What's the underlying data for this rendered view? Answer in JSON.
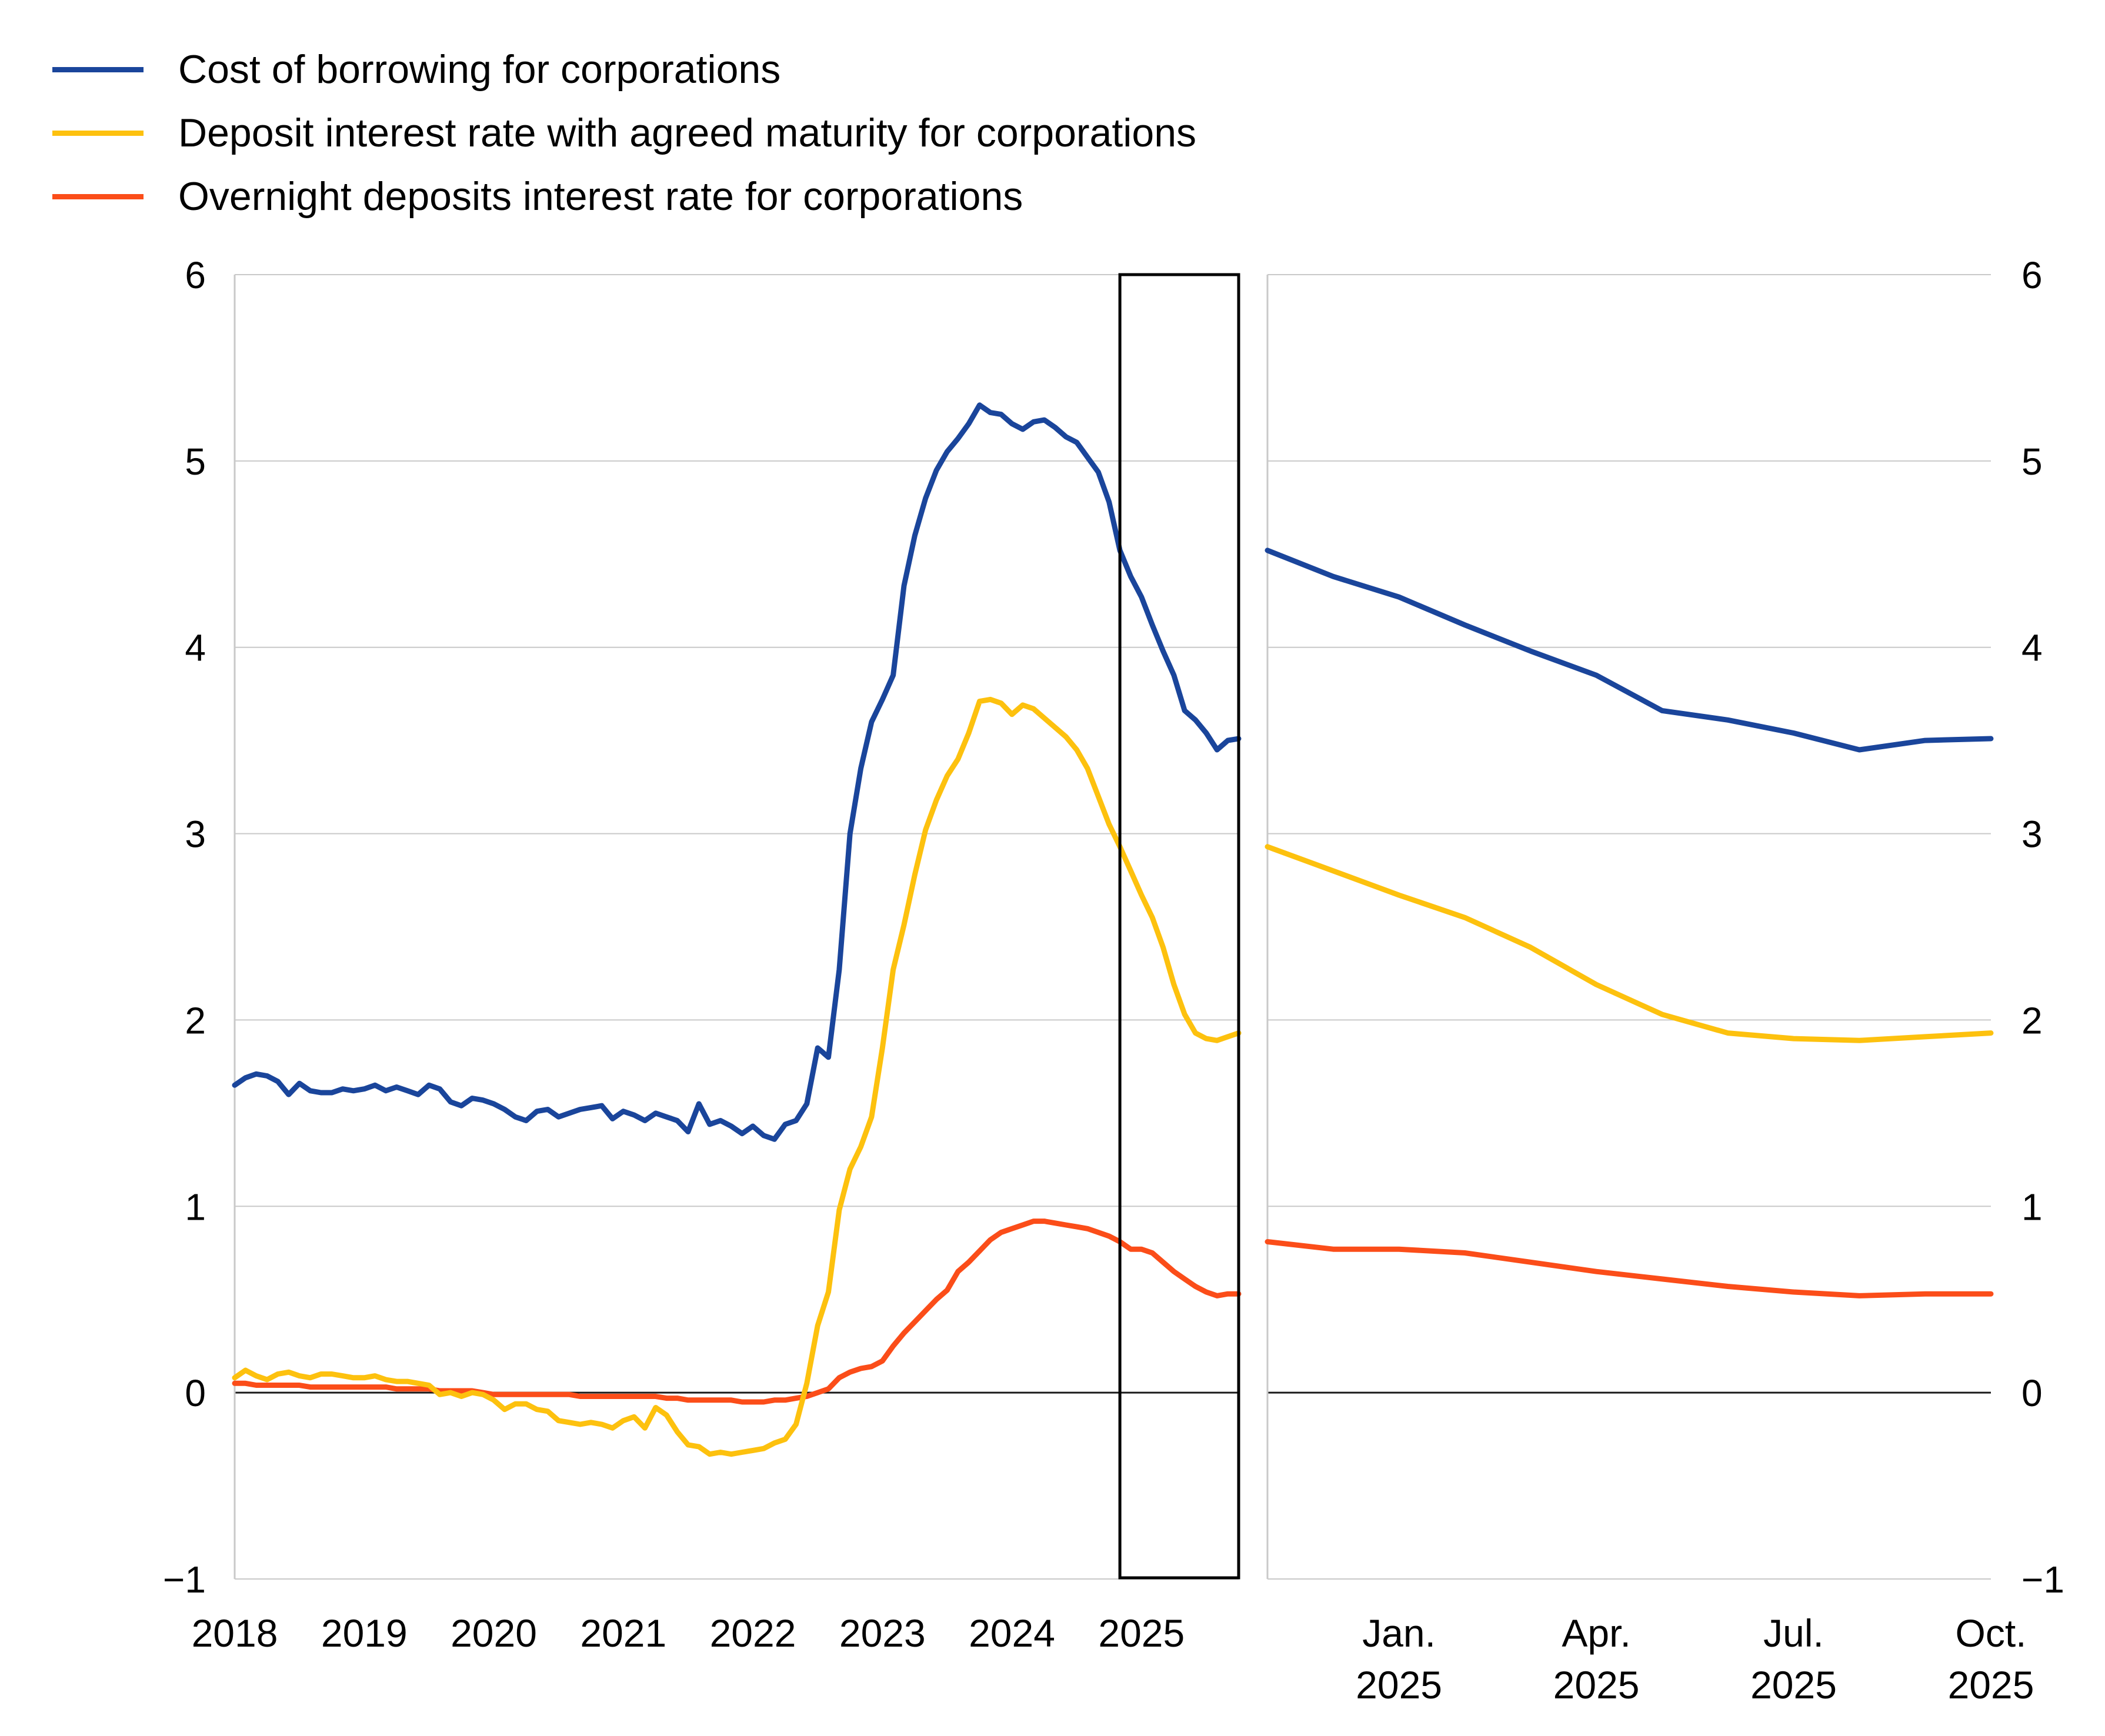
{
  "legend": {
    "items": [
      {
        "label": "Cost of borrowing for corporations",
        "color": "#1A459B",
        "icon": "line-swatch"
      },
      {
        "label": "Deposit interest rate with agreed maturity for corporations",
        "color": "#FDC10E",
        "icon": "line-swatch"
      },
      {
        "label": "Overnight deposits interest rate for corporations",
        "color": "#FB4D19",
        "icon": "line-swatch"
      }
    ]
  },
  "axes": {
    "left_tick_labels": [
      "6",
      "5",
      "4",
      "3",
      "2",
      "1",
      "0",
      "−1"
    ],
    "right_tick_labels": [
      "6",
      "5",
      "4",
      "3",
      "2",
      "1",
      "0",
      "−1"
    ],
    "tick_values": [
      6,
      5,
      4,
      3,
      2,
      1,
      0,
      -1
    ],
    "grid_color": "#c9c9c9",
    "zero_line_color": "#1a1a1a",
    "text_color": "#000000"
  },
  "chart_data": [
    {
      "type": "line",
      "panel": "left",
      "title": "",
      "xlabel": "",
      "ylabel": "",
      "frequency": "monthly",
      "x_start": "2018-01",
      "x_end": "2025-10",
      "ylim": [
        -1,
        6
      ],
      "y_ticks": [
        6,
        5,
        4,
        3,
        2,
        1,
        0,
        -1
      ],
      "grid": true,
      "legend_position": "top-left",
      "x_tick_labels": [
        "2018",
        "2019",
        "2020",
        "2021",
        "2022",
        "2023",
        "2024",
        "2025"
      ],
      "x_tick_month_indices": [
        0,
        12,
        24,
        36,
        48,
        60,
        72,
        84
      ],
      "highlight_box": {
        "start": "2024-11",
        "end": "2025-10",
        "start_index": 82,
        "end_index": 93,
        "color": "#000000"
      },
      "series": [
        {
          "name": "Cost of borrowing for corporations",
          "color": "#1A459B",
          "values": [
            1.65,
            1.69,
            1.71,
            1.7,
            1.67,
            1.6,
            1.66,
            1.62,
            1.61,
            1.61,
            1.63,
            1.62,
            1.63,
            1.65,
            1.62,
            1.64,
            1.62,
            1.6,
            1.65,
            1.63,
            1.56,
            1.54,
            1.58,
            1.57,
            1.55,
            1.52,
            1.48,
            1.46,
            1.51,
            1.52,
            1.48,
            1.5,
            1.52,
            1.53,
            1.54,
            1.47,
            1.51,
            1.49,
            1.46,
            1.5,
            1.48,
            1.46,
            1.4,
            1.55,
            1.44,
            1.46,
            1.43,
            1.39,
            1.43,
            1.38,
            1.36,
            1.44,
            1.46,
            1.55,
            1.85,
            1.8,
            2.27,
            3.0,
            3.35,
            3.6,
            3.72,
            3.85,
            4.33,
            4.6,
            4.8,
            4.95,
            5.05,
            5.12,
            5.2,
            5.3,
            5.26,
            5.25,
            5.2,
            5.17,
            5.21,
            5.22,
            5.18,
            5.13,
            5.1,
            5.02,
            4.94,
            4.78,
            4.52,
            4.38,
            4.27,
            4.12,
            3.98,
            3.85,
            3.66,
            3.61,
            3.54,
            3.45,
            3.5,
            3.51
          ]
        },
        {
          "name": "Deposit interest rate with agreed maturity for corporations",
          "color": "#FDC10E",
          "values": [
            0.08,
            0.12,
            0.09,
            0.07,
            0.1,
            0.11,
            0.09,
            0.08,
            0.1,
            0.1,
            0.09,
            0.08,
            0.08,
            0.09,
            0.07,
            0.06,
            0.06,
            0.05,
            0.04,
            -0.01,
            0.0,
            -0.02,
            0.0,
            -0.01,
            -0.04,
            -0.09,
            -0.06,
            -0.06,
            -0.09,
            -0.1,
            -0.15,
            -0.16,
            -0.17,
            -0.16,
            -0.17,
            -0.19,
            -0.15,
            -0.13,
            -0.19,
            -0.08,
            -0.12,
            -0.21,
            -0.28,
            -0.29,
            -0.33,
            -0.32,
            -0.33,
            -0.32,
            -0.31,
            -0.3,
            -0.27,
            -0.25,
            -0.17,
            0.05,
            0.36,
            0.54,
            0.98,
            1.2,
            1.32,
            1.48,
            1.85,
            2.27,
            2.51,
            2.78,
            3.02,
            3.18,
            3.31,
            3.4,
            3.54,
            3.71,
            3.72,
            3.7,
            3.64,
            3.69,
            3.67,
            3.62,
            3.57,
            3.52,
            3.45,
            3.35,
            3.2,
            3.05,
            2.93,
            2.8,
            2.67,
            2.55,
            2.39,
            2.19,
            2.03,
            1.93,
            1.9,
            1.89,
            1.91,
            1.93
          ]
        },
        {
          "name": "Overnight deposits interest rate for corporations",
          "color": "#FB4D19",
          "values": [
            0.05,
            0.05,
            0.04,
            0.04,
            0.04,
            0.04,
            0.04,
            0.03,
            0.03,
            0.03,
            0.03,
            0.03,
            0.03,
            0.03,
            0.03,
            0.02,
            0.02,
            0.02,
            0.02,
            0.01,
            0.01,
            0.01,
            0.01,
            0.0,
            -0.01,
            -0.01,
            -0.01,
            -0.01,
            -0.01,
            -0.01,
            -0.01,
            -0.01,
            -0.02,
            -0.02,
            -0.02,
            -0.02,
            -0.02,
            -0.02,
            -0.02,
            -0.02,
            -0.03,
            -0.03,
            -0.04,
            -0.04,
            -0.04,
            -0.04,
            -0.04,
            -0.05,
            -0.05,
            -0.05,
            -0.04,
            -0.04,
            -0.03,
            -0.02,
            0.0,
            0.02,
            0.08,
            0.11,
            0.13,
            0.14,
            0.17,
            0.25,
            0.32,
            0.38,
            0.44,
            0.5,
            0.55,
            0.65,
            0.7,
            0.76,
            0.82,
            0.86,
            0.88,
            0.9,
            0.92,
            0.92,
            0.91,
            0.9,
            0.89,
            0.88,
            0.86,
            0.84,
            0.81,
            0.77,
            0.77,
            0.75,
            0.7,
            0.65,
            0.61,
            0.57,
            0.54,
            0.52,
            0.53,
            0.53
          ]
        }
      ]
    },
    {
      "type": "line",
      "panel": "right",
      "title": "",
      "xlabel": "",
      "ylabel": "",
      "frequency": "monthly",
      "x_start": "2024-11",
      "x_end": "2025-10",
      "ylim": [
        -1,
        6
      ],
      "y_ticks": [
        6,
        5,
        4,
        3,
        2,
        1,
        0,
        -1
      ],
      "grid": true,
      "x_tick_labels": [
        [
          "Jan.",
          "2025"
        ],
        [
          "Apr.",
          "2025"
        ],
        [
          "Jul.",
          "2025"
        ],
        [
          "Oct.",
          "2025"
        ]
      ],
      "x_tick_month_indices": [
        2,
        5,
        8,
        11
      ],
      "series": [
        {
          "name": "Cost of borrowing for corporations",
          "color": "#1A459B",
          "values": [
            4.52,
            4.38,
            4.27,
            4.12,
            3.98,
            3.85,
            3.66,
            3.61,
            3.54,
            3.45,
            3.5,
            3.51
          ]
        },
        {
          "name": "Deposit interest rate with agreed maturity for corporations",
          "color": "#FDC10E",
          "values": [
            2.93,
            2.8,
            2.67,
            2.55,
            2.39,
            2.19,
            2.03,
            1.93,
            1.9,
            1.89,
            1.91,
            1.93
          ]
        },
        {
          "name": "Overnight deposits interest rate for corporations",
          "color": "#FB4D19",
          "values": [
            0.81,
            0.77,
            0.77,
            0.75,
            0.7,
            0.65,
            0.61,
            0.57,
            0.54,
            0.52,
            0.53,
            0.53
          ]
        }
      ]
    }
  ]
}
